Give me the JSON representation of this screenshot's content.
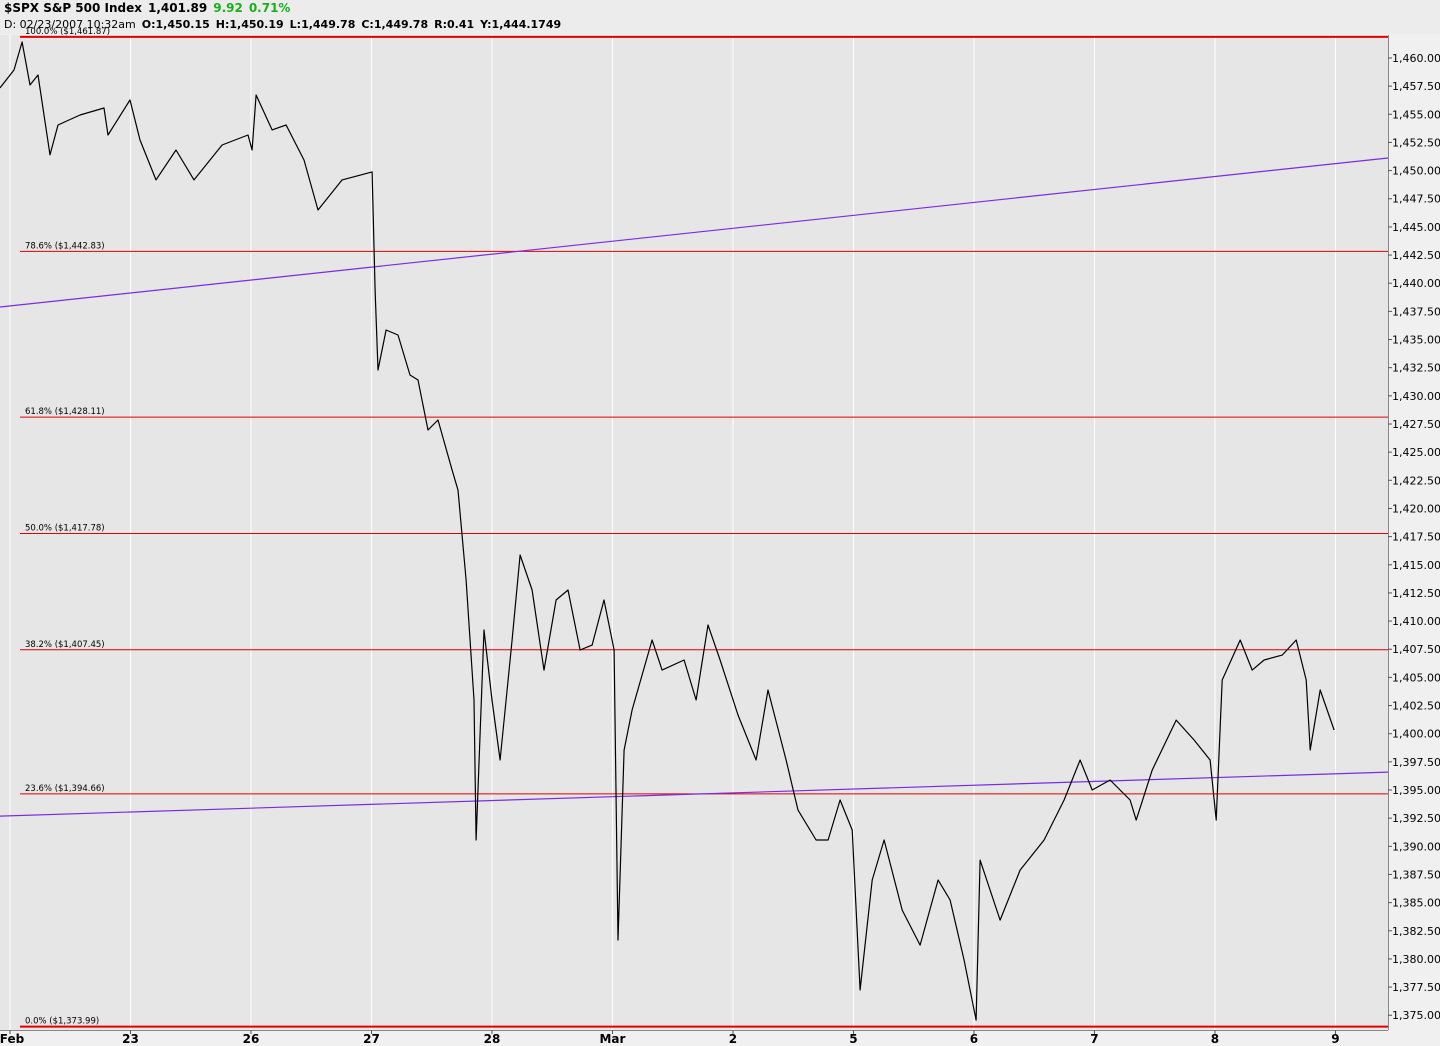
{
  "header": {
    "symbol": "$SPX S&P 500 Index",
    "last": "1,401.89",
    "change": "9.92",
    "change_pct": "0.71%",
    "date": "D: 02/23/2007 10:32am",
    "open": "O:1,450.15",
    "high": "H:1,450.19",
    "low": "L:1,449.78",
    "close": "C:1,449.78",
    "range": "R:0.41",
    "y": "Y:1,444.1749"
  },
  "chart_data": {
    "type": "line",
    "color": "#000000",
    "grid": "x",
    "grid_color": "#ffffff",
    "xlim": [
      -0.083,
      11.436
    ],
    "ylim": [
      1373.69,
      1462.04
    ],
    "xticks": [
      {
        "value": 0,
        "label": "Feb"
      },
      {
        "value": 1,
        "label": "23"
      },
      {
        "value": 2,
        "label": "26"
      },
      {
        "value": 3,
        "label": "27"
      },
      {
        "value": 4,
        "label": "28"
      },
      {
        "value": 5,
        "label": "Mar"
      },
      {
        "value": 6,
        "label": "2"
      },
      {
        "value": 7,
        "label": "5"
      },
      {
        "value": 8,
        "label": "6"
      },
      {
        "value": 9,
        "label": "7"
      },
      {
        "value": 10,
        "label": "8"
      },
      {
        "value": 11,
        "label": "9"
      }
    ],
    "yticks": [
      {
        "value": 1375,
        "label": "1,375.00"
      },
      {
        "value": 1377.5,
        "label": "1,377.50"
      },
      {
        "value": 1380,
        "label": "1,380.00"
      },
      {
        "value": 1382.5,
        "label": "1,382.50"
      },
      {
        "value": 1385,
        "label": "1,385.00"
      },
      {
        "value": 1387.5,
        "label": "1,387.50"
      },
      {
        "value": 1390,
        "label": "1,390.00"
      },
      {
        "value": 1392.5,
        "label": "1,392.50"
      },
      {
        "value": 1395,
        "label": "1,395.00"
      },
      {
        "value": 1397.5,
        "label": "1,397.50"
      },
      {
        "value": 1400,
        "label": "1,400.00"
      },
      {
        "value": 1402.5,
        "label": "1,402.50"
      },
      {
        "value": 1405,
        "label": "1,405.00"
      },
      {
        "value": 1407.5,
        "label": "1,407.50"
      },
      {
        "value": 1410,
        "label": "1,410.00"
      },
      {
        "value": 1412.5,
        "label": "1,412.50"
      },
      {
        "value": 1415,
        "label": "1,415.00"
      },
      {
        "value": 1417.5,
        "label": "1,417.50"
      },
      {
        "value": 1420,
        "label": "1,420.00"
      },
      {
        "value": 1422.5,
        "label": "1,422.50"
      },
      {
        "value": 1425,
        "label": "1,425.00"
      },
      {
        "value": 1427.5,
        "label": "1,427.50"
      },
      {
        "value": 1430,
        "label": "1,430.00"
      },
      {
        "value": 1432.5,
        "label": "1,432.50"
      },
      {
        "value": 1435,
        "label": "1,435.00"
      },
      {
        "value": 1437.5,
        "label": "1,437.50"
      },
      {
        "value": 1440,
        "label": "1,440.00"
      },
      {
        "value": 1442.5,
        "label": "1,442.50"
      },
      {
        "value": 1445,
        "label": "1,445.00"
      },
      {
        "value": 1447.5,
        "label": "1,447.50"
      },
      {
        "value": 1450,
        "label": "1,450.00"
      },
      {
        "value": 1452.5,
        "label": "1,452.50"
      },
      {
        "value": 1455,
        "label": "1,455.00"
      },
      {
        "value": 1457.5,
        "label": "1,457.50"
      },
      {
        "value": 1460,
        "label": "1,460.00"
      }
    ],
    "level_color": "#e00000",
    "levels": [
      {
        "label": "100.0% ($1,461.87)",
        "value": 1461.87
      },
      {
        "label": "78.6% ($1,442.83)",
        "value": 1442.83
      },
      {
        "label": "61.8% ($1,428.11)",
        "value": 1428.11
      },
      {
        "label": "50.0% ($1,417.78)",
        "value": 1417.78
      },
      {
        "label": "38.2% ($1,407.45)",
        "value": 1407.45
      },
      {
        "label": "23.6% ($1,394.66)",
        "value": 1394.66
      },
      {
        "label": "0.0% ($1,373.99)",
        "value": 1373.99
      }
    ],
    "trend_color": "#7b2be2",
    "trendlines": [
      {
        "x": [
          -0.083,
          11.436
        ],
        "values": [
          1437.89,
          1451.12
        ]
      },
      {
        "x": [
          -0.083,
          11.436
        ],
        "values": [
          1392.68,
          1396.59
        ]
      }
    ],
    "x": [
      -0.083,
      0.033,
      0.1,
      0.166,
      0.232,
      0.332,
      0.398,
      0.581,
      0.78,
      0.813,
      0.996,
      1.079,
      1.212,
      1.378,
      1.527,
      1.76,
      1.975,
      2.009,
      2.042,
      2.175,
      2.291,
      2.44,
      2.556,
      2.756,
      3.005,
      3.03,
      3.054,
      3.121,
      3.22,
      3.32,
      3.386,
      3.469,
      3.552,
      3.669,
      3.718,
      3.785,
      3.851,
      3.868,
      3.934,
      4.0,
      4.067,
      4.167,
      4.233,
      4.333,
      4.432,
      4.532,
      4.631,
      4.731,
      4.831,
      4.93,
      5.013,
      5.046,
      5.096,
      5.163,
      5.329,
      5.412,
      5.594,
      5.694,
      5.793,
      5.893,
      6.042,
      6.192,
      6.291,
      6.441,
      6.54,
      6.69,
      6.789,
      6.889,
      6.989,
      7.055,
      7.155,
      7.254,
      7.404,
      7.553,
      7.702,
      7.802,
      7.918,
      8.018,
      8.051,
      8.217,
      8.383,
      8.582,
      8.748,
      8.881,
      8.981,
      9.13,
      9.296,
      9.346,
      9.479,
      9.678,
      9.827,
      9.96,
      10.01,
      10.06,
      10.209,
      10.309,
      10.408,
      10.558,
      10.674,
      10.757,
      10.79,
      10.873,
      10.989
    ],
    "values": [
      1457.34,
      1458.93,
      1461.42,
      1457.6,
      1458.49,
      1451.39,
      1454.05,
      1454.94,
      1455.56,
      1453.16,
      1456.27,
      1452.72,
      1449.17,
      1451.83,
      1449.17,
      1452.27,
      1453.16,
      1451.83,
      1456.71,
      1453.61,
      1454.05,
      1450.94,
      1446.5,
      1449.17,
      1449.88,
      1439.4,
      1432.29,
      1435.85,
      1435.4,
      1431.85,
      1431.41,
      1426.97,
      1427.85,
      1423.41,
      1421.63,
      1413.65,
      1402.99,
      1390.56,
      1409.21,
      1402.99,
      1397.66,
      1408.32,
      1415.87,
      1412.76,
      1405.65,
      1411.87,
      1412.76,
      1407.43,
      1407.87,
      1411.87,
      1407.43,
      1381.68,
      1398.55,
      1402.1,
      1408.32,
      1405.65,
      1406.54,
      1402.99,
      1409.65,
      1406.54,
      1401.66,
      1397.66,
      1403.88,
      1397.66,
      1393.22,
      1390.56,
      1390.56,
      1394.11,
      1391.45,
      1377.24,
      1387.01,
      1390.56,
      1384.34,
      1381.23,
      1387.01,
      1385.23,
      1379.9,
      1374.57,
      1388.78,
      1383.45,
      1387.89,
      1390.56,
      1394.11,
      1397.66,
      1395.0,
      1395.89,
      1394.11,
      1392.33,
      1396.77,
      1401.21,
      1399.44,
      1397.66,
      1392.33,
      1404.77,
      1408.32,
      1405.65,
      1406.54,
      1406.98,
      1408.32,
      1404.77,
      1398.55,
      1403.88,
      1400.33
    ]
  }
}
